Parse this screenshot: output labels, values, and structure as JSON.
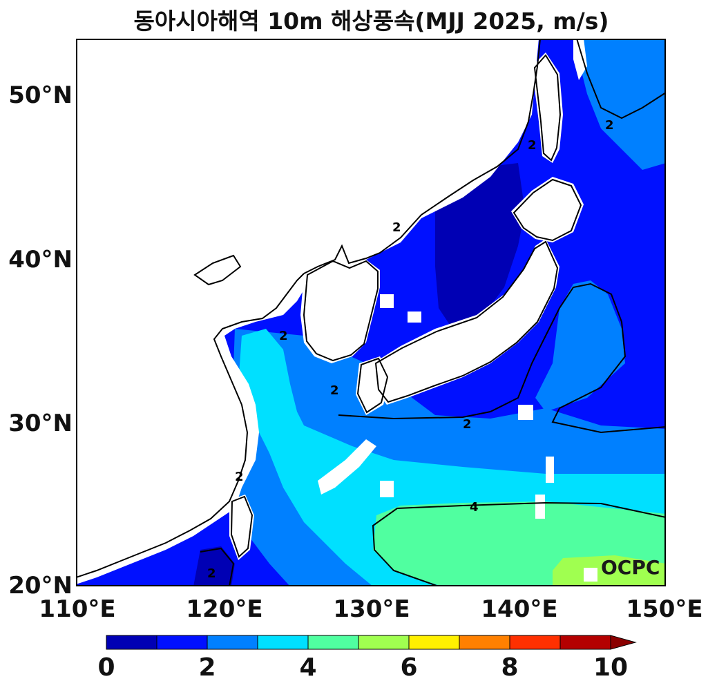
{
  "title": "동아시아해역 10m 해상풍속(MJJ 2025, m/s)",
  "watermark": "OCPC",
  "map": {
    "lon_range": [
      110,
      150
    ],
    "lat_range": [
      20,
      53.5
    ],
    "lat_ticks": [
      "50°N",
      "40°N",
      "30°N",
      "20°N"
    ],
    "lat_tick_values": [
      50,
      40,
      30,
      20
    ],
    "lon_ticks": [
      "110°E",
      "120°E",
      "130°E",
      "140°E",
      "150°E"
    ],
    "lon_tick_values": [
      110,
      120,
      130,
      140,
      150
    ],
    "contour_labels": [
      "2",
      "2",
      "2",
      "2",
      "2",
      "2",
      "2",
      "2",
      "4"
    ]
  },
  "colorbar": {
    "ticks": [
      "0",
      "2",
      "4",
      "6",
      "8",
      "10"
    ],
    "tick_values": [
      0,
      2,
      4,
      6,
      8,
      10
    ],
    "colors": [
      "#0000b4",
      "#0010ff",
      "#0080ff",
      "#00e0ff",
      "#50ffa0",
      "#a0ff50",
      "#fff000",
      "#ff8000",
      "#ff3000",
      "#b40000"
    ],
    "extend_color": "#8b0000",
    "unit": "m/s"
  }
}
